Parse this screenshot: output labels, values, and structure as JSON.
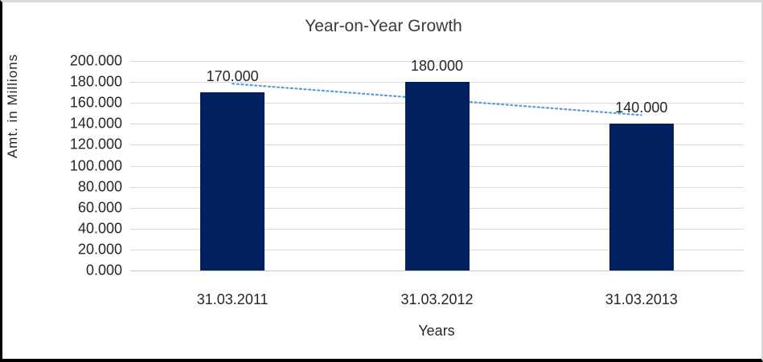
{
  "chart": {
    "title": "Year-on-Year Growth",
    "y_axis": {
      "title": "Amt. in Millions",
      "ticks": [
        "200.000",
        "180.000",
        "160.000",
        "140.000",
        "120.000",
        "100.000",
        "80.000",
        "60.000",
        "40.000",
        "20.000",
        "0.000"
      ]
    },
    "x_axis": {
      "title": "Years",
      "categories": [
        "31.03.2011",
        "31.03.2012",
        "31.03.2013"
      ]
    },
    "data_labels": [
      "170.000",
      "180.000",
      "140.000"
    ],
    "colors": {
      "bar": "#002060",
      "trendline": "#5b9bd5",
      "gridline": "#d9d9d9",
      "text": "#262626"
    }
  },
  "chart_data": {
    "type": "bar",
    "title": "Year-on-Year Growth",
    "categories": [
      "31.03.2011",
      "31.03.2012",
      "31.03.2013"
    ],
    "series": [
      {
        "name": "Amt. in Millions",
        "values": [
          170.0,
          180.0,
          140.0
        ]
      }
    ],
    "data_labels": [
      "170.000",
      "180.000",
      "140.000"
    ],
    "xlabel": "Years",
    "ylabel": "Amt. in Millions",
    "ylim": [
      0,
      200
    ],
    "ytick_step": 20,
    "grid": true,
    "legend": "none",
    "trendline": {
      "type": "linear",
      "style": "dotted",
      "color": "#5b9bd5",
      "start_value": 178.333,
      "end_value": 148.333
    }
  }
}
